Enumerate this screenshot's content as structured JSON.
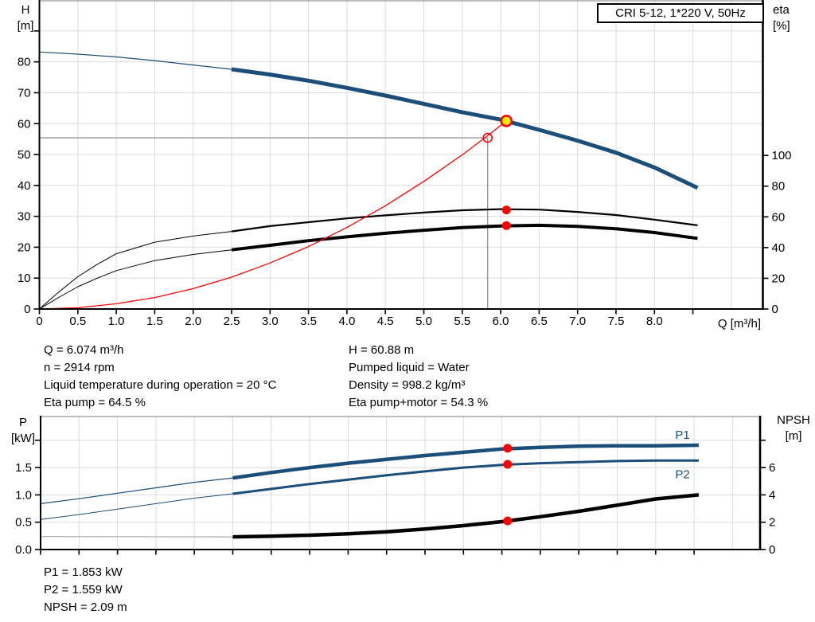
{
  "title_box": {
    "label": "CRI 5-12, 1*220 V, 50Hz"
  },
  "colors": {
    "curve_blue": "#1b4e79",
    "curve_black": "#000000",
    "system_red": "#ff0000",
    "marker_red": "#ff0000",
    "marker_yellow": "#ffe800",
    "grid": "#dcdcdc",
    "grid_dark": "#a8a8a8",
    "helper_gray": "#999999",
    "npsh_thin_gray": "#a8a8a8",
    "axis": "#000000"
  },
  "chart_data": [
    {
      "id": "qh-eta-chart",
      "type": "line",
      "x": {
        "label": "Q [m³/h]",
        "min": 0,
        "max": 9.4,
        "ticks": [
          {
            "v": 0,
            "label": "0"
          },
          {
            "v": 0.5,
            "label": "0.5"
          },
          {
            "v": 1,
            "label": "1.0"
          },
          {
            "v": 1.5,
            "label": "1.5"
          },
          {
            "v": 2,
            "label": "2.0"
          },
          {
            "v": 2.5,
            "label": "2.5"
          },
          {
            "v": 3,
            "label": "3.0"
          },
          {
            "v": 3.5,
            "label": "3.5"
          },
          {
            "v": 4,
            "label": "4.0"
          },
          {
            "v": 4.5,
            "label": "4.5"
          },
          {
            "v": 5,
            "label": "5.0"
          },
          {
            "v": 5.5,
            "label": "5.5"
          },
          {
            "v": 6,
            "label": "6.0"
          },
          {
            "v": 6.5,
            "label": "6.5"
          },
          {
            "v": 7,
            "label": "7.0"
          },
          {
            "v": 7.5,
            "label": "7.5"
          },
          {
            "v": 8,
            "label": "8.0"
          },
          {
            "v": 8.5,
            "label": ""
          }
        ]
      },
      "y_left": {
        "l1": "H",
        "l2": "[m]",
        "min": 0,
        "max": 100,
        "ticks": [
          {
            "v": 0,
            "label": "0"
          },
          {
            "v": 10,
            "label": "10"
          },
          {
            "v": 20,
            "label": "20"
          },
          {
            "v": 30,
            "label": "30"
          },
          {
            "v": 40,
            "label": "40"
          },
          {
            "v": 50,
            "label": "50"
          },
          {
            "v": 60,
            "label": "60"
          },
          {
            "v": 70,
            "label": "70"
          },
          {
            "v": 80,
            "label": "80"
          },
          {
            "v": 90,
            "label": ""
          }
        ]
      },
      "y_right": {
        "l1": "eta",
        "l2": "[%]",
        "min": 0,
        "max": 201,
        "ticks": [
          {
            "v": 0,
            "label": "0"
          },
          {
            "v": 20,
            "label": "20"
          },
          {
            "v": 40,
            "label": "40"
          },
          {
            "v": 60,
            "label": "60"
          },
          {
            "v": 80,
            "label": "80"
          },
          {
            "v": 100,
            "label": "100"
          }
        ]
      },
      "series": [
        {
          "name": "QH-curve",
          "axis": "left",
          "color": "curve_blue",
          "width": 5,
          "width_thin": 1.2,
          "thick_from": 2.5,
          "points": [
            [
              0,
              83.2
            ],
            [
              0.5,
              82.5
            ],
            [
              1,
              81.6
            ],
            [
              1.5,
              80.4
            ],
            [
              2,
              79.0
            ],
            [
              2.5,
              77.6
            ],
            [
              3,
              75.9
            ],
            [
              3.5,
              73.9
            ],
            [
              4,
              71.6
            ],
            [
              4.5,
              69.1
            ],
            [
              5,
              66.4
            ],
            [
              5.5,
              63.7
            ],
            [
              6,
              61.3
            ],
            [
              6.5,
              58.0
            ],
            [
              7,
              54.5
            ],
            [
              7.5,
              50.6
            ],
            [
              8,
              45.8
            ],
            [
              8.56,
              39.2
            ]
          ]
        },
        {
          "name": "eta-pump-curve",
          "axis": "right",
          "color": "curve_black",
          "width": 2.2,
          "width_thin": 1,
          "thick_from": 2.5,
          "points": [
            [
              0,
              0
            ],
            [
              0.25,
              11
            ],
            [
              0.5,
              21
            ],
            [
              0.75,
              29
            ],
            [
              1,
              36
            ],
            [
              1.5,
              43.5
            ],
            [
              2,
              47.5
            ],
            [
              2.5,
              50.5
            ],
            [
              3,
              54
            ],
            [
              3.5,
              56.5
            ],
            [
              4,
              59
            ],
            [
              4.5,
              61
            ],
            [
              5,
              62.8
            ],
            [
              5.5,
              64.3
            ],
            [
              6,
              65.0
            ],
            [
              6.5,
              64.7
            ],
            [
              7,
              63.2
            ],
            [
              7.5,
              61.2
            ],
            [
              8,
              58.2
            ],
            [
              8.56,
              54.5
            ]
          ]
        },
        {
          "name": "eta-pump-motor-curve",
          "axis": "right",
          "color": "curve_black",
          "width": 4,
          "width_thin": 1,
          "thick_from": 2.5,
          "points": [
            [
              0,
              0
            ],
            [
              0.25,
              7.5
            ],
            [
              0.5,
              14.5
            ],
            [
              0.75,
              20
            ],
            [
              1,
              25
            ],
            [
              1.5,
              31.5
            ],
            [
              2,
              35.5
            ],
            [
              2.5,
              38.5
            ],
            [
              3,
              41.5
            ],
            [
              3.5,
              44.5
            ],
            [
              4,
              47
            ],
            [
              4.5,
              49.3
            ],
            [
              5,
              51.3
            ],
            [
              5.5,
              53
            ],
            [
              6,
              54.1
            ],
            [
              6.5,
              54.5
            ],
            [
              7,
              53.8
            ],
            [
              7.5,
              52.2
            ],
            [
              8,
              49.8
            ],
            [
              8.56,
              46
            ]
          ]
        },
        {
          "name": "system-curve",
          "axis": "left",
          "color": "system_red",
          "width": 1.3,
          "width_thin": null,
          "thick_from": null,
          "points": [
            [
              0,
              0
            ],
            [
              0.5,
              0.4
            ],
            [
              1,
              1.7
            ],
            [
              1.5,
              3.7
            ],
            [
              2,
              6.6
            ],
            [
              2.5,
              10.3
            ],
            [
              3,
              14.9
            ],
            [
              3.5,
              20.2
            ],
            [
              4,
              26.4
            ],
            [
              4.5,
              33.4
            ],
            [
              5,
              41.3
            ],
            [
              5.5,
              49.9
            ],
            [
              5.83,
              56.1
            ],
            [
              6.074,
              60.88
            ]
          ]
        }
      ],
      "duty_helper": {
        "q": 5.83,
        "h": 55.4
      },
      "markers": [
        {
          "shape": "ring",
          "axis": "left",
          "q": 5.83,
          "v": 55.4
        },
        {
          "shape": "duty",
          "axis": "left",
          "q": 6.074,
          "v": 60.88
        },
        {
          "shape": "dot",
          "axis": "right",
          "q": 6.074,
          "v": 64.5
        },
        {
          "shape": "dot",
          "axis": "right",
          "q": 6.074,
          "v": 54.3
        }
      ],
      "labels": []
    },
    {
      "id": "power-npsh-chart",
      "type": "line",
      "x": {
        "label": "",
        "min": 0,
        "max": 9.35,
        "ticks": [
          {
            "v": 0,
            "label": ""
          },
          {
            "v": 0.5,
            "label": ""
          },
          {
            "v": 1,
            "label": ""
          },
          {
            "v": 1.5,
            "label": ""
          },
          {
            "v": 2,
            "label": ""
          },
          {
            "v": 2.5,
            "label": ""
          },
          {
            "v": 3,
            "label": ""
          },
          {
            "v": 3.5,
            "label": ""
          },
          {
            "v": 4,
            "label": ""
          },
          {
            "v": 4.5,
            "label": ""
          },
          {
            "v": 5,
            "label": ""
          },
          {
            "v": 5.5,
            "label": ""
          },
          {
            "v": 6,
            "label": ""
          },
          {
            "v": 6.5,
            "label": ""
          },
          {
            "v": 7,
            "label": ""
          },
          {
            "v": 7.5,
            "label": ""
          },
          {
            "v": 8,
            "label": ""
          },
          {
            "v": 8.5,
            "label": ""
          }
        ]
      },
      "y_left": {
        "l1": "P",
        "l2": "[kW]",
        "min": 0,
        "max": 2.42,
        "ticks": [
          {
            "v": 0,
            "label": "0.0"
          },
          {
            "v": 0.5,
            "label": "0.5"
          },
          {
            "v": 1,
            "label": "1.0"
          },
          {
            "v": 1.5,
            "label": "1.5"
          },
          {
            "v": 2,
            "label": ""
          }
        ]
      },
      "y_right": {
        "l1": "NPSH",
        "l2": "[m]",
        "min": 0,
        "max": 9.7,
        "ticks": [
          {
            "v": 0,
            "label": "0"
          },
          {
            "v": 2,
            "label": "2"
          },
          {
            "v": 4,
            "label": "4"
          },
          {
            "v": 6,
            "label": "6"
          },
          {
            "v": 8,
            "label": ""
          }
        ]
      },
      "series": [
        {
          "name": "P1-curve",
          "axis": "left",
          "color": "curve_blue",
          "width": 4.5,
          "width_thin": 1.2,
          "thick_from": 2.5,
          "points": [
            [
              0,
              0.84
            ],
            [
              0.5,
              0.93
            ],
            [
              1,
              1.03
            ],
            [
              1.5,
              1.13
            ],
            [
              2,
              1.23
            ],
            [
              2.5,
              1.31
            ],
            [
              3,
              1.41
            ],
            [
              3.5,
              1.5
            ],
            [
              4,
              1.58
            ],
            [
              4.5,
              1.65
            ],
            [
              5,
              1.72
            ],
            [
              5.5,
              1.78
            ],
            [
              6,
              1.84
            ],
            [
              6.5,
              1.87
            ],
            [
              7,
              1.89
            ],
            [
              7.5,
              1.9
            ],
            [
              8,
              1.9
            ],
            [
              8.56,
              1.91
            ]
          ]
        },
        {
          "name": "P2-curve",
          "axis": "left",
          "color": "curve_blue",
          "width": 3,
          "width_thin": 1,
          "thick_from": 2.5,
          "points": [
            [
              0,
              0.55
            ],
            [
              0.5,
              0.64
            ],
            [
              1,
              0.74
            ],
            [
              1.5,
              0.84
            ],
            [
              2,
              0.94
            ],
            [
              2.5,
              1.02
            ],
            [
              3,
              1.11
            ],
            [
              3.5,
              1.2
            ],
            [
              4,
              1.28
            ],
            [
              4.5,
              1.36
            ],
            [
              5,
              1.43
            ],
            [
              5.5,
              1.5
            ],
            [
              6,
              1.55
            ],
            [
              6.5,
              1.58
            ],
            [
              7,
              1.6
            ],
            [
              7.5,
              1.62
            ],
            [
              8,
              1.63
            ],
            [
              8.56,
              1.63
            ]
          ]
        },
        {
          "name": "npsh-extension",
          "axis": "right",
          "color": "npsh_thin_gray",
          "width": 1.2,
          "width_thin": null,
          "thick_from": null,
          "points": [
            [
              0,
              0.95
            ],
            [
              2.5,
              0.93
            ]
          ]
        },
        {
          "name": "npsh-curve",
          "axis": "right",
          "color": "curve_black",
          "width": 4.5,
          "width_thin": null,
          "thick_from": null,
          "points": [
            [
              2.5,
              0.93
            ],
            [
              3,
              0.98
            ],
            [
              3.5,
              1.05
            ],
            [
              4,
              1.15
            ],
            [
              4.5,
              1.3
            ],
            [
              5,
              1.5
            ],
            [
              5.5,
              1.75
            ],
            [
              6,
              2.04
            ],
            [
              6.5,
              2.4
            ],
            [
              7,
              2.8
            ],
            [
              7.5,
              3.25
            ],
            [
              8,
              3.7
            ],
            [
              8.56,
              4.0
            ]
          ]
        }
      ],
      "duty_helper": null,
      "markers": [
        {
          "shape": "dot",
          "axis": "left",
          "q": 6.074,
          "v": 1.853
        },
        {
          "shape": "dot",
          "axis": "left",
          "q": 6.074,
          "v": 1.559
        },
        {
          "shape": "dot",
          "axis": "right",
          "q": 6.074,
          "v": 2.09
        }
      ],
      "labels": [
        {
          "text": "P1",
          "q": 8.35,
          "v": 2.1,
          "axis": "left"
        },
        {
          "text": "P2",
          "q": 8.35,
          "v": 1.38,
          "axis": "left"
        }
      ]
    }
  ],
  "results_top": {
    "left": [
      "Q = 6.074 m³/h",
      "n = 2914 rpm",
      "Liquid temperature during operation = 20 °C",
      "Eta pump = 64.5 %"
    ],
    "right": [
      "H = 60.88 m",
      "Pumped liquid = Water",
      "Density = 998.2 kg/m³",
      "Eta pump+motor = 54.3 %"
    ]
  },
  "results_bottom": [
    "P1 = 1.853 kW",
    "P2 = 1.559 kW",
    "NPSH = 2.09 m"
  ]
}
